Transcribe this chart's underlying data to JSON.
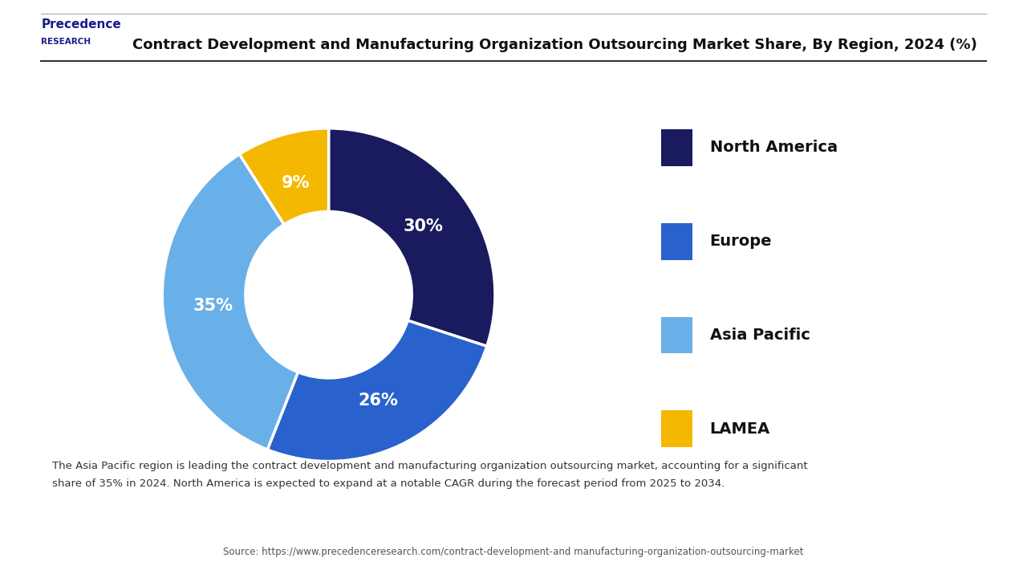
{
  "title": "Contract Development and Manufacturing Organization Outsourcing Market Share, By Region, 2024 (%)",
  "slices": [
    30,
    26,
    35,
    9
  ],
  "labels": [
    "North America",
    "Europe",
    "Asia Pacific",
    "LAMEA"
  ],
  "pct_labels": [
    "30%",
    "26%",
    "35%",
    "9%"
  ],
  "colors": [
    "#1a1a5e",
    "#2962cc",
    "#6ab0e8",
    "#f5b800"
  ],
  "legend_labels": [
    "North America",
    "Europe",
    "Asia Pacific",
    "LAMEA"
  ],
  "annotation_text": "The Asia Pacific region is leading the contract development and manufacturing organization outsourcing market, accounting for a significant\nshare of 35% in 2024. North America is expected to expand at a notable CAGR during the forecast period from 2025 to 2034.",
  "source_text": "Source: https://www.precedenceresearch.com/contract-development-and manufacturing-organization-outsourcing-market",
  "background_color": "#ffffff",
  "annotation_bg_color": "#e8f0f8"
}
